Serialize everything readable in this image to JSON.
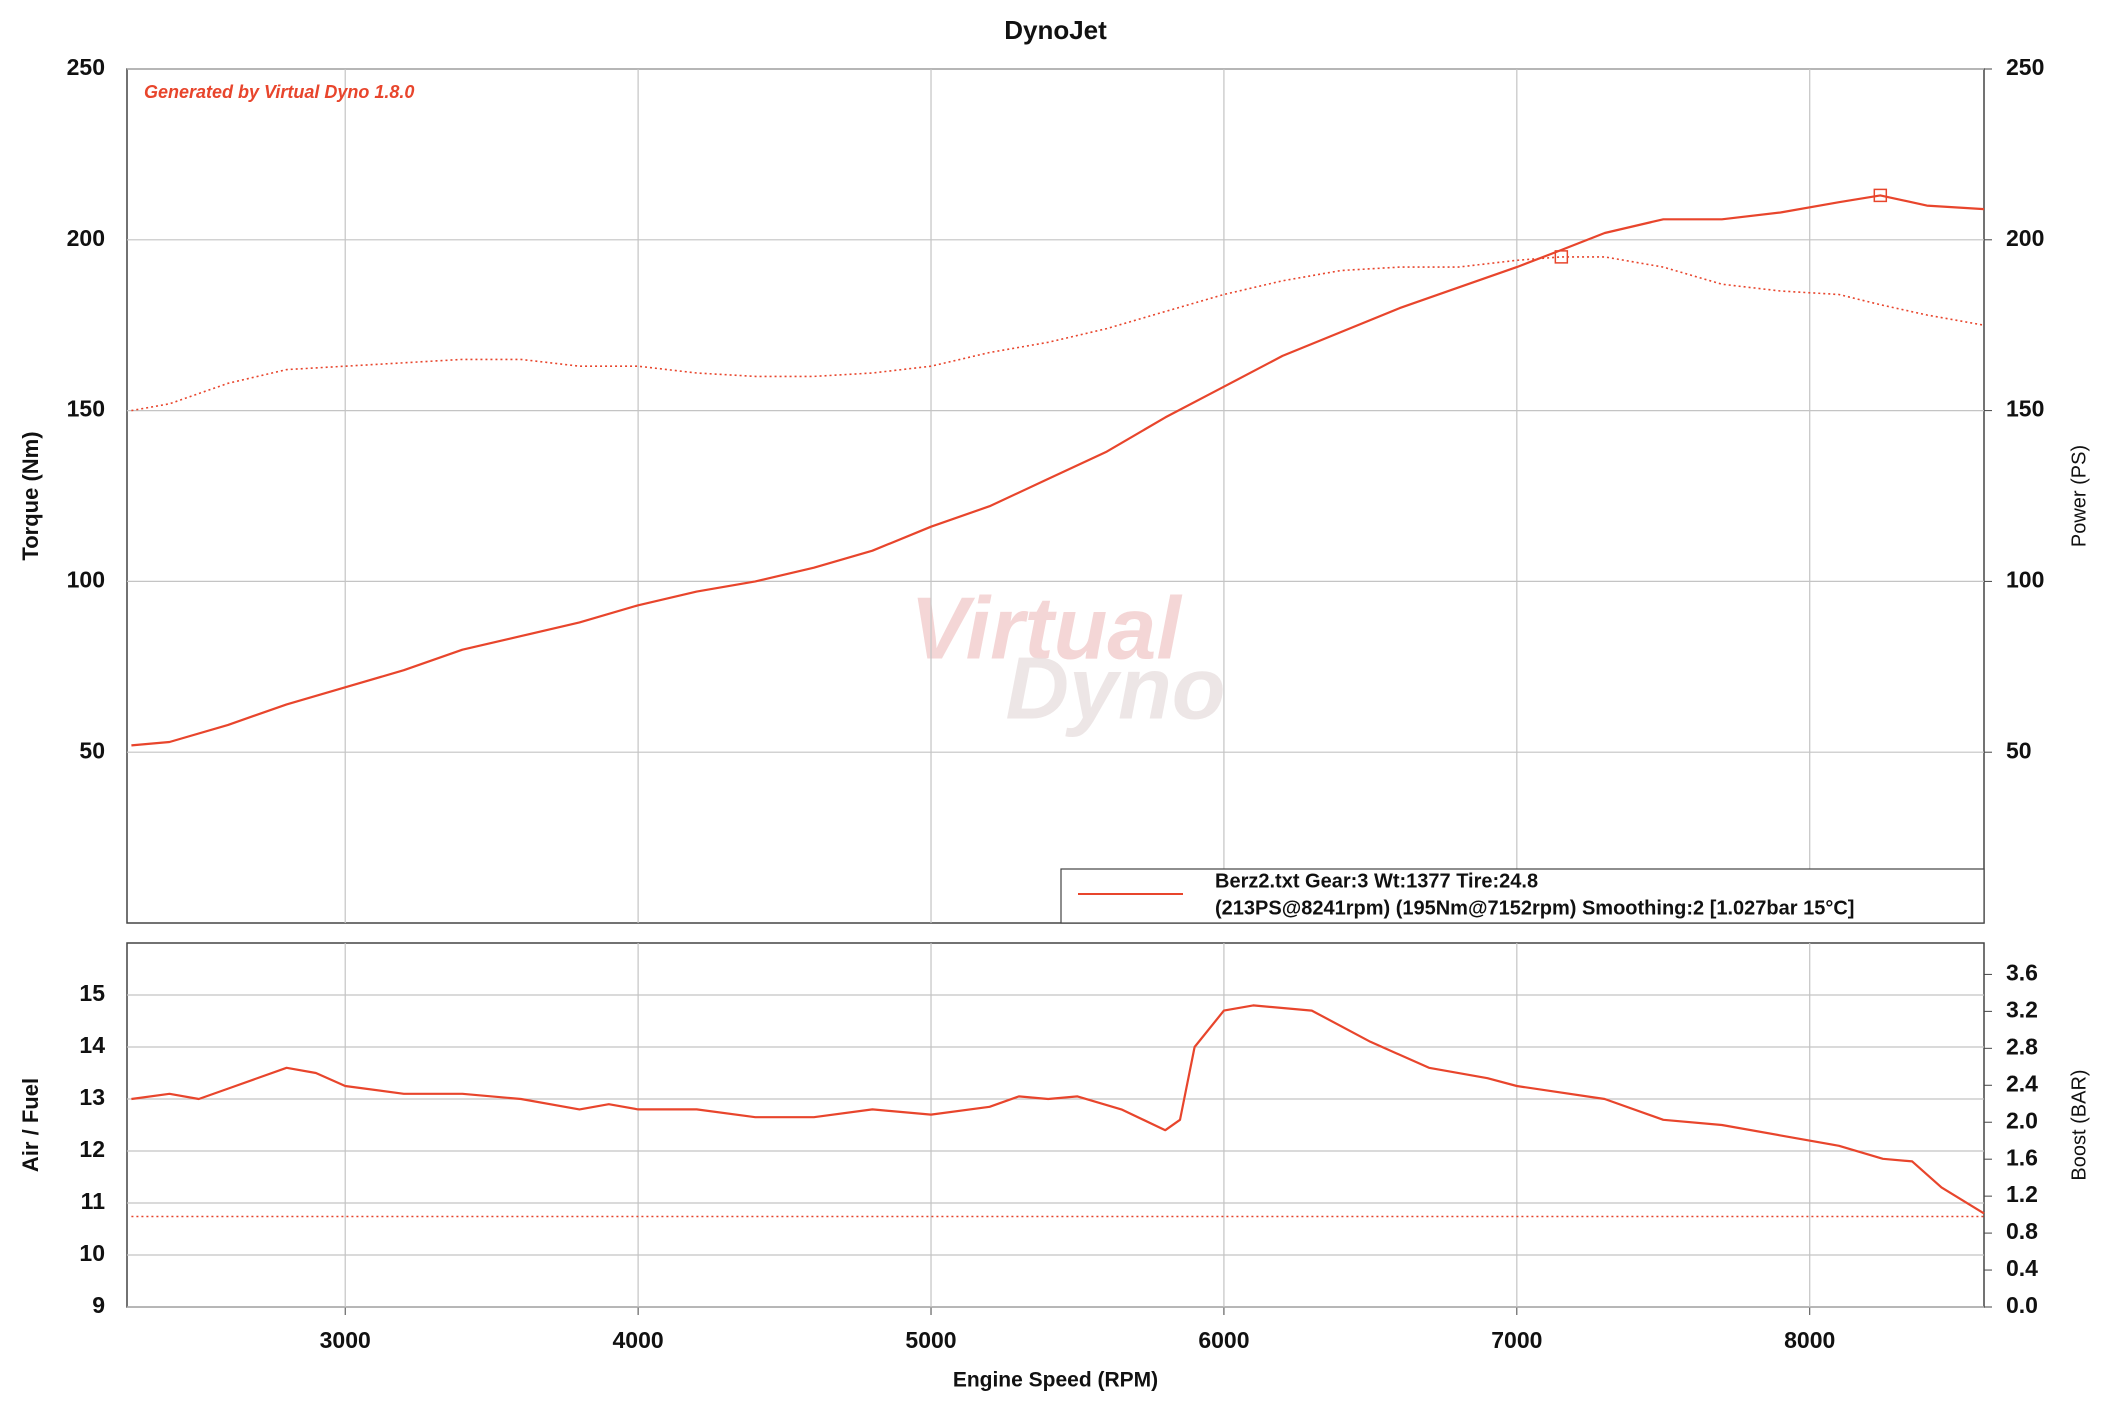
{
  "chart_data": [
    {
      "type": "line",
      "title": "DynoJet",
      "annotation": "Generated by Virtual Dyno 1.8.0",
      "watermark": [
        "Virtual",
        "Dyno"
      ],
      "ylabel": "Torque (Nm)",
      "y2label": "Power (PS)",
      "xlim": [
        2255,
        8595
      ],
      "xticks": [
        3000,
        4000,
        5000,
        6000,
        7000,
        8000
      ],
      "show_xtick_labels": false,
      "ylim": [
        0,
        250
      ],
      "yticks": [
        50,
        100,
        150,
        200,
        250
      ],
      "y2lim": [
        0,
        250
      ],
      "y2ticks": [
        50,
        100,
        150,
        200,
        250
      ],
      "grid": true,
      "legend": {
        "position": "lower right",
        "color": "#e8452c",
        "lines": [
          "Berz2.txt Gear:3 Wt:1377 Tire:24.8",
          "(213PS@8241rpm)  (195Nm@7152rpm)  Smoothing:2  [1.027bar  15°C]"
        ]
      },
      "series": [
        {
          "color": "#e8452c",
          "style": "dotted",
          "x": [
            2270,
            2400,
            2600,
            2800,
            3000,
            3200,
            3400,
            3600,
            3800,
            4000,
            4200,
            4400,
            4600,
            4800,
            5000,
            5200,
            5400,
            5600,
            5800,
            6000,
            6200,
            6400,
            6600,
            6800,
            7000,
            7152,
            7300,
            7500,
            7700,
            7900,
            8100,
            8241,
            8400,
            8595
          ],
          "values": [
            150,
            152,
            158,
            162,
            163,
            164,
            165,
            165,
            163,
            163,
            161,
            160,
            160,
            161,
            163,
            167,
            170,
            174,
            179,
            184,
            188,
            191,
            192,
            192,
            194,
            195,
            195,
            192,
            187,
            185,
            184,
            181,
            178,
            175
          ],
          "peak": {
            "x": 7152,
            "y": 195
          }
        },
        {
          "color": "#e8452c",
          "style": "solid",
          "axis": "y2",
          "x": [
            2270,
            2400,
            2600,
            2800,
            3000,
            3200,
            3400,
            3600,
            3800,
            4000,
            4200,
            4400,
            4600,
            4800,
            5000,
            5200,
            5400,
            5600,
            5800,
            6000,
            6200,
            6400,
            6600,
            6800,
            7000,
            7152,
            7300,
            7500,
            7700,
            7900,
            8100,
            8241,
            8400,
            8595
          ],
          "values": [
            52,
            53,
            58,
            64,
            69,
            74,
            80,
            84,
            88,
            93,
            97,
            100,
            104,
            109,
            116,
            122,
            130,
            138,
            148,
            157,
            166,
            173,
            180,
            186,
            192,
            197,
            202,
            206,
            206,
            208,
            211,
            213,
            210,
            209
          ],
          "peak": {
            "x": 8241,
            "y": 213
          }
        }
      ]
    },
    {
      "type": "line",
      "xlabel": "Engine Speed (RPM)",
      "ylabel": "Air / Fuel",
      "y2label": "Boost (BAR)",
      "xlim": [
        2255,
        8595
      ],
      "xticks": [
        3000,
        4000,
        5000,
        6000,
        7000,
        8000
      ],
      "ylim": [
        9,
        16
      ],
      "yticks": [
        9,
        10,
        11,
        12,
        13,
        14,
        15
      ],
      "y2lim": [
        0,
        3.94
      ],
      "y2ticks": [
        {
          "value": 0,
          "label": "0.0"
        },
        0.4,
        0.8,
        1.2,
        1.6,
        {
          "value": 2,
          "label": "2.0"
        },
        2.4,
        2.8,
        3.2,
        3.6
      ],
      "grid": true,
      "series": [
        {
          "color": "#e8452c",
          "style": "solid",
          "x": [
            2270,
            2400,
            2500,
            2600,
            2800,
            2900,
            3000,
            3200,
            3400,
            3600,
            3800,
            3900,
            4000,
            4200,
            4400,
            4600,
            4800,
            5000,
            5200,
            5300,
            5400,
            5500,
            5650,
            5800,
            5850,
            5900,
            6000,
            6100,
            6300,
            6500,
            6700,
            6900,
            7000,
            7300,
            7500,
            7700,
            7900,
            8100,
            8250,
            8350,
            8450,
            8595
          ],
          "values": [
            13.0,
            13.1,
            13.0,
            13.2,
            13.6,
            13.5,
            13.25,
            13.1,
            13.1,
            13.0,
            12.8,
            12.9,
            12.8,
            12.8,
            12.65,
            12.65,
            12.8,
            12.7,
            12.85,
            13.05,
            13.0,
            13.05,
            12.8,
            12.4,
            12.6,
            14.0,
            14.7,
            14.8,
            14.7,
            14.1,
            13.6,
            13.4,
            13.25,
            13.0,
            12.6,
            12.5,
            12.3,
            12.1,
            11.85,
            11.8,
            11.3,
            10.8
          ]
        },
        {
          "color": "#e8452c",
          "style": "dotted",
          "axis": "y2",
          "x": [
            2270,
            8595
          ],
          "values": [
            0.98,
            0.98
          ]
        }
      ]
    }
  ]
}
